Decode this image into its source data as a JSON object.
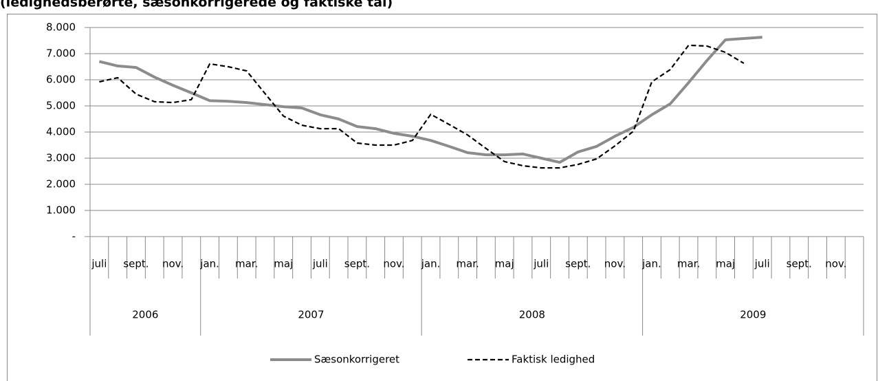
{
  "chart_data": {
    "type": "line",
    "title": "(ledighedsberørte, sæsonkorrigerede og faktiske tal)",
    "categories": [
      "juli",
      null,
      "sept.",
      null,
      "nov.",
      null,
      "jan.",
      null,
      "mar.",
      null,
      "maj",
      null,
      "juli",
      null,
      "sept.",
      null,
      "nov.",
      null,
      "jan.",
      null,
      "mar.",
      null,
      "maj",
      null,
      "juli",
      null,
      "sept.",
      null,
      "nov.",
      null,
      "jan.",
      null,
      "mar.",
      null,
      "maj",
      null,
      "juli",
      null,
      "sept.",
      null,
      "nov.",
      null
    ],
    "x_groups": [
      {
        "label": "2006",
        "span": 6
      },
      {
        "label": "2007",
        "span": 12
      },
      {
        "label": "2008",
        "span": 12
      },
      {
        "label": "2009",
        "span": 12
      }
    ],
    "series": [
      {
        "name": "Sæsonkorrigeret",
        "color": "#8c8c8c",
        "dash": "solid",
        "values": [
          6700,
          6530,
          6470,
          6100,
          5790,
          5500,
          5200,
          5180,
          5130,
          5050,
          4970,
          4920,
          4660,
          4500,
          4210,
          4130,
          3950,
          3840,
          3680,
          3450,
          3210,
          3130,
          3130,
          3160,
          3000,
          2840,
          3240,
          3450,
          3840,
          4180,
          4660,
          5080,
          5890,
          6740,
          7530,
          7580,
          7630,
          null,
          null,
          null,
          null,
          null
        ]
      },
      {
        "name": "Faktisk ledighed",
        "color": "#000000",
        "dash": "dashed",
        "values": [
          5920,
          6080,
          5450,
          5160,
          5130,
          5240,
          6610,
          6500,
          6340,
          5470,
          4610,
          4260,
          4130,
          4130,
          3580,
          3500,
          3500,
          3680,
          4680,
          4290,
          3890,
          3370,
          2870,
          2710,
          2630,
          2630,
          2760,
          2970,
          3470,
          4030,
          5920,
          6390,
          7320,
          7290,
          7050,
          6630,
          null,
          null,
          null,
          null,
          null,
          null
        ]
      }
    ],
    "ylim": [
      0,
      8000
    ],
    "yticks": [
      {
        "value": 0,
        "label": "-"
      },
      {
        "value": 1000,
        "label": "1.000"
      },
      {
        "value": 2000,
        "label": "2.000"
      },
      {
        "value": 3000,
        "label": "3.000"
      },
      {
        "value": 4000,
        "label": "4.000"
      },
      {
        "value": 5000,
        "label": "5.000"
      },
      {
        "value": 6000,
        "label": "6.000"
      },
      {
        "value": 7000,
        "label": "7.000"
      },
      {
        "value": 8000,
        "label": "8.000"
      }
    ],
    "grid": true,
    "legend": "bottom"
  }
}
